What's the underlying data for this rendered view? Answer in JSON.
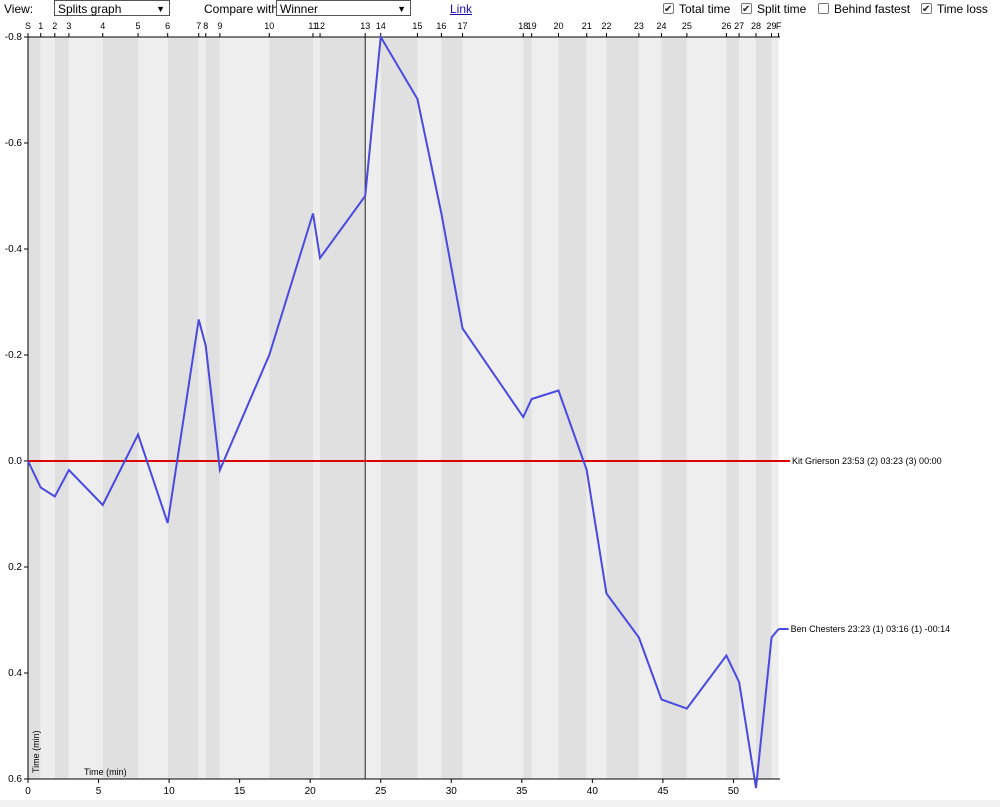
{
  "toolbar": {
    "view_label": "View:",
    "view_value": "Splits graph",
    "compare_label": "Compare with",
    "compare_value": "Winner",
    "link_label": "Link",
    "checkboxes": [
      {
        "label": "Total time",
        "checked": true
      },
      {
        "label": "Split time",
        "checked": true
      },
      {
        "label": "Behind fastest",
        "checked": false
      },
      {
        "label": "Time loss",
        "checked": true
      }
    ]
  },
  "chart_data": {
    "type": "line",
    "xlabel": "Time (min)",
    "ylabel": "Time (min)",
    "x_ticks": [
      0,
      5,
      10,
      15,
      20,
      25,
      30,
      35,
      40,
      45,
      50
    ],
    "y_ticks": [
      -0.8,
      -0.6,
      -0.4,
      -0.2,
      0.0,
      0.2,
      0.4,
      0.6
    ],
    "xlim": [
      0,
      53.3
    ],
    "ylim": [
      -0.8,
      0.6
    ],
    "y_inverted_top_negative": true,
    "controls": [
      {
        "label": "S",
        "x": 0.0
      },
      {
        "label": "1",
        "x": 0.9
      },
      {
        "label": "2",
        "x": 1.9
      },
      {
        "label": "3",
        "x": 2.9
      },
      {
        "label": "4",
        "x": 5.3
      },
      {
        "label": "5",
        "x": 7.8
      },
      {
        "label": "6",
        "x": 9.9
      },
      {
        "label": "7",
        "x": 12.1
      },
      {
        "label": "8",
        "x": 12.6
      },
      {
        "label": "9",
        "x": 13.6
      },
      {
        "label": "10",
        "x": 17.1
      },
      {
        "label": "11",
        "x": 20.2
      },
      {
        "label": "12",
        "x": 20.7
      },
      {
        "label": "13",
        "x": 23.9
      },
      {
        "label": "14",
        "x": 25.0
      },
      {
        "label": "15",
        "x": 27.6
      },
      {
        "label": "16",
        "x": 29.3
      },
      {
        "label": "17",
        "x": 30.8
      },
      {
        "label": "18",
        "x": 35.1
      },
      {
        "label": "19",
        "x": 35.7
      },
      {
        "label": "20",
        "x": 37.6
      },
      {
        "label": "21",
        "x": 39.6
      },
      {
        "label": "22",
        "x": 41.0
      },
      {
        "label": "23",
        "x": 43.3
      },
      {
        "label": "24",
        "x": 44.9
      },
      {
        "label": "25",
        "x": 46.7
      },
      {
        "label": "26",
        "x": 49.5
      },
      {
        "label": "27",
        "x": 50.4
      },
      {
        "label": "28",
        "x": 51.6
      },
      {
        "label": "29",
        "x": 52.7
      },
      {
        "label": "F",
        "x": 53.2
      }
    ],
    "cursor_x": 23.9,
    "series": [
      {
        "name": "Kit Grierson",
        "info": "23:53 (2)    03:23 (3)    00:00",
        "color": "#dd0000",
        "x": [
          0,
          53.3
        ],
        "y": [
          0,
          0
        ]
      },
      {
        "name": "Ben Chesters",
        "info": "23:23 (1)    03:16 (1)    -00:14",
        "color": "#4a4ae0",
        "x": [
          0,
          0.9,
          1.9,
          2.9,
          5.3,
          7.8,
          9.9,
          12.1,
          12.6,
          13.6,
          17.1,
          20.2,
          20.7,
          23.9,
          25.0,
          27.6,
          29.3,
          30.8,
          35.1,
          35.7,
          37.6,
          39.6,
          41.0,
          43.3,
          44.9,
          46.7,
          49.5,
          50.4,
          51.6,
          52.7,
          53.2
        ],
        "y": [
          0,
          0.05,
          0.067,
          0.017,
          0.083,
          -0.05,
          0.117,
          -0.267,
          -0.217,
          0.017,
          -0.2,
          -0.467,
          -0.383,
          -0.5,
          -0.8,
          -0.683,
          -0.467,
          -0.25,
          -0.083,
          -0.117,
          -0.133,
          0.017,
          0.25,
          0.333,
          0.45,
          0.467,
          0.367,
          0.417,
          0.617,
          0.333,
          0.317
        ]
      }
    ]
  }
}
